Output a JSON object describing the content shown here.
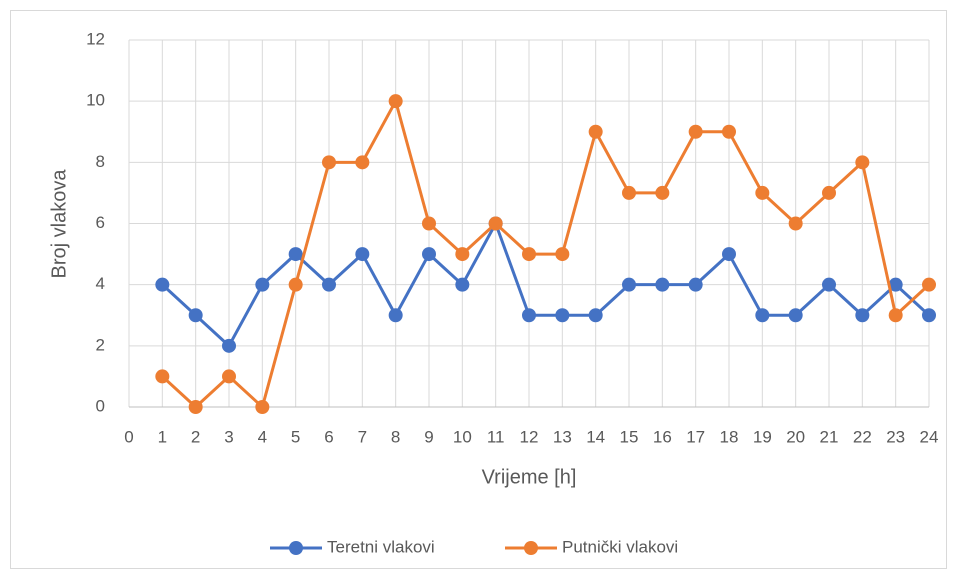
{
  "chart_data": {
    "type": "line",
    "x_label": "Vrijeme [h]",
    "y_label": "Broj vlakova",
    "x": [
      1,
      2,
      3,
      4,
      5,
      6,
      7,
      8,
      9,
      10,
      11,
      12,
      13,
      14,
      15,
      16,
      17,
      18,
      19,
      20,
      21,
      22,
      23,
      24
    ],
    "series": [
      {
        "name": "Teretni vlakovi",
        "color": "#4472c4",
        "values": [
          4,
          3,
          2,
          4,
          5,
          4,
          5,
          3,
          5,
          4,
          6,
          3,
          3,
          3,
          4,
          4,
          4,
          5,
          3,
          3,
          4,
          3,
          4,
          3
        ]
      },
      {
        "name": "Putnički vlakovi",
        "color": "#ed7d31",
        "values": [
          1,
          0,
          1,
          0,
          4,
          8,
          8,
          10,
          6,
          5,
          6,
          5,
          5,
          9,
          7,
          7,
          9,
          9,
          7,
          6,
          7,
          8,
          3,
          4
        ]
      }
    ],
    "xlim": [
      0,
      24
    ],
    "xticks": [
      0,
      1,
      2,
      3,
      4,
      5,
      6,
      7,
      8,
      9,
      10,
      11,
      12,
      13,
      14,
      15,
      16,
      17,
      18,
      19,
      20,
      21,
      22,
      23,
      24
    ],
    "ylim": [
      0,
      12
    ],
    "yticks": [
      0,
      2,
      4,
      6,
      8,
      10,
      12
    ],
    "grid": true,
    "legend": "bottom"
  }
}
